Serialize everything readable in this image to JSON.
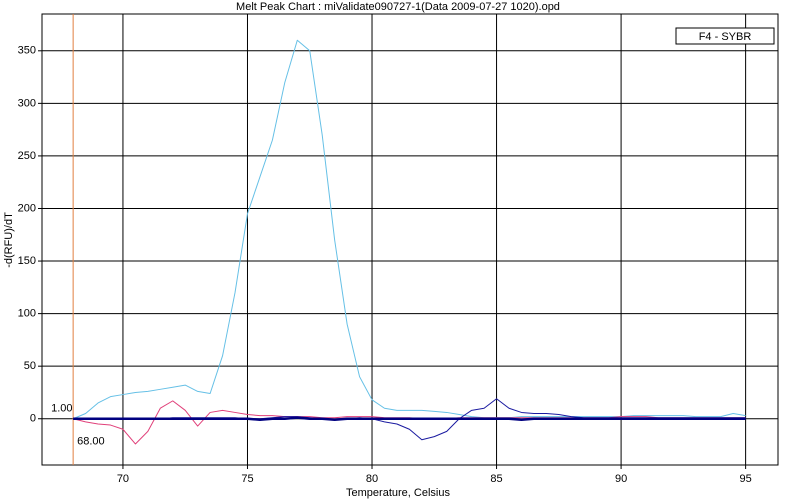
{
  "chart_data": {
    "type": "line",
    "title": "Melt Peak Chart : miValidate090727-1(Data 2009-07-27 1020).opd",
    "x_label": "Temperature, Celsius",
    "y_label": "-d(RFU)/dT",
    "x": [
      68,
      68.5,
      69,
      69.5,
      70,
      70.5,
      71,
      71.5,
      72,
      72.5,
      73,
      73.5,
      74,
      74.5,
      75,
      75.5,
      76,
      76.5,
      77,
      77.5,
      78,
      78.5,
      79,
      79.5,
      80,
      80.5,
      81,
      81.5,
      82,
      82.5,
      83,
      83.5,
      84,
      84.5,
      85,
      85.5,
      86,
      86.5,
      87,
      87.5,
      88,
      88.5,
      89,
      89.5,
      90,
      90.5,
      91,
      91.5,
      92,
      92.5,
      93,
      93.5,
      94,
      94.5,
      95
    ],
    "series": [
      {
        "color": "#66c0e6",
        "width": 1,
        "values": [
          0,
          5,
          15,
          21,
          23,
          25,
          26,
          28,
          30,
          32,
          26,
          24,
          60,
          120,
          195,
          230,
          265,
          320,
          360,
          350,
          270,
          170,
          90,
          40,
          18,
          10,
          8,
          8,
          8,
          7,
          6,
          4,
          2,
          1,
          1,
          1,
          2,
          2,
          2,
          2,
          2,
          2,
          2,
          2,
          2,
          3,
          3,
          3,
          3,
          3,
          2,
          2,
          2,
          5,
          3
        ]
      },
      {
        "color": "#e0407a",
        "width": 1,
        "values": [
          0,
          -3,
          -5,
          -6,
          -10,
          -24,
          -12,
          10,
          17,
          8,
          -7,
          6,
          8,
          6,
          4,
          3,
          3,
          2,
          2,
          2,
          1,
          1,
          2,
          2,
          2,
          1,
          1,
          1,
          0,
          0,
          0,
          1,
          1,
          1,
          1,
          1,
          1,
          1,
          1,
          1,
          1,
          1,
          1,
          1,
          2,
          2,
          2,
          1,
          1,
          1,
          1,
          1,
          1,
          1,
          1
        ]
      },
      {
        "color": "#1a1aa0",
        "width": 1,
        "values": [
          0,
          0,
          0,
          0,
          0,
          0,
          0,
          0,
          1,
          1,
          1,
          1,
          1,
          1,
          0,
          0,
          1,
          2,
          2,
          1,
          0,
          -1,
          0,
          1,
          0,
          -3,
          -5,
          -10,
          -20,
          -17,
          -12,
          0,
          8,
          10,
          19,
          10,
          6,
          5,
          5,
          4,
          2,
          1,
          1,
          1,
          1,
          1,
          1,
          1,
          1,
          1,
          1,
          1,
          1,
          1,
          1
        ]
      },
      {
        "color": "#000080",
        "width": 2.5,
        "values": [
          0,
          0,
          0,
          0,
          0,
          0,
          0,
          0,
          0,
          0,
          0,
          0,
          0,
          0,
          0,
          -1,
          0,
          0,
          1,
          0,
          0,
          -1,
          0,
          0,
          0,
          0,
          0,
          0,
          0,
          0,
          0,
          0,
          0,
          0,
          0,
          0,
          -1,
          0,
          0,
          0,
          0,
          0,
          0,
          0,
          0,
          0,
          0,
          0,
          0,
          0,
          0,
          0,
          0,
          0,
          0
        ]
      }
    ],
    "xlim": [
      66.75,
      96.3
    ],
    "ylim": [
      -44,
      385
    ],
    "xticks": [
      70,
      75,
      80,
      85,
      90,
      95
    ],
    "yticks": [
      0,
      50,
      100,
      150,
      200,
      250,
      300,
      350
    ],
    "grid": true,
    "cursor": {
      "value": 68,
      "label": "68.00",
      "y_value": 1,
      "y_label": "1.00",
      "color": "#e08040"
    },
    "legend": {
      "label": "F4 - SYBR",
      "position": "upper right"
    }
  }
}
